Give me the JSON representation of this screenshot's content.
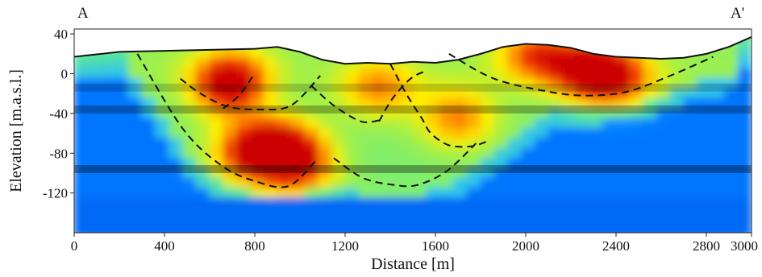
{
  "section_labels": {
    "start": "A",
    "end": "A'"
  },
  "chart_data": {
    "type": "heatmap",
    "title": "",
    "xlabel": "Distance [m]",
    "ylabel": "Elevation [m.a.s.l.]",
    "xlim": [
      0,
      3000
    ],
    "ylim": [
      -160,
      45
    ],
    "x_ticks": [
      0,
      400,
      800,
      1200,
      1600,
      2000,
      2400,
      2800,
      3000
    ],
    "y_ticks": [
      40,
      0,
      -40,
      -80,
      -120
    ],
    "colorscale": [
      "#0033cc",
      "#0077ff",
      "#22bbff",
      "#66ee88",
      "#aaf040",
      "#ffee00",
      "#ff9900",
      "#ee3300",
      "#cc0000"
    ],
    "topography": {
      "x": [
        0,
        200,
        400,
        600,
        800,
        900,
        1000,
        1100,
        1200,
        1300,
        1400,
        1500,
        1600,
        1700,
        1800,
        1900,
        2000,
        2100,
        2200,
        2300,
        2400,
        2500,
        2600,
        2700,
        2800,
        2900,
        3000
      ],
      "y": [
        17,
        22,
        23,
        24,
        25,
        27,
        22,
        14,
        10,
        11,
        10,
        12,
        11,
        14,
        20,
        27,
        30,
        29,
        26,
        20,
        17,
        16,
        15,
        16,
        20,
        27,
        37
      ]
    },
    "anomalies": [
      {
        "x": 1350,
        "y": -15,
        "intensity": 0.55
      },
      {
        "x": 680,
        "y": -15,
        "intensity": 0.6
      },
      {
        "x": 700,
        "y": -5,
        "intensity": 0.55
      },
      {
        "x": 920,
        "y": -75,
        "intensity": 0.9
      },
      {
        "x": 780,
        "y": -80,
        "intensity": 0.78
      },
      {
        "x": 1000,
        "y": -95,
        "intensity": 0.62
      },
      {
        "x": 1700,
        "y": -45,
        "intensity": 0.62
      },
      {
        "x": 2050,
        "y": 18,
        "intensity": 0.7
      },
      {
        "x": 2290,
        "y": 2,
        "intensity": 0.95
      },
      {
        "x": 2420,
        "y": -5,
        "intensity": 0.55
      }
    ],
    "dashed_boundaries": [
      {
        "x": [
          280,
          480,
          650,
          800,
          950,
          1080
        ],
        "y": [
          20,
          -55,
          -92,
          -108,
          -113,
          -85
        ]
      },
      {
        "x": [
          470,
          560,
          680,
          820,
          960,
          1090
        ],
        "y": [
          -5,
          -20,
          -33,
          -36,
          -32,
          -2
        ]
      },
      {
        "x": [
          660,
          730,
          790
        ],
        "y": [
          -35,
          -22,
          -3
        ]
      },
      {
        "x": [
          1050,
          1150,
          1270,
          1350
        ],
        "y": [
          -12,
          -32,
          -48,
          -47
        ]
      },
      {
        "x": [
          1350,
          1410,
          1490,
          1560
        ],
        "y": [
          -48,
          -25,
          -5,
          3
        ]
      },
      {
        "x": [
          1400,
          1470,
          1540,
          1580,
          1660,
          1760,
          1830
        ],
        "y": [
          10,
          -20,
          -45,
          -60,
          -72,
          -73,
          -68
        ]
      },
      {
        "x": [
          1150,
          1280,
          1420,
          1520,
          1650,
          1780
        ],
        "y": [
          -85,
          -105,
          -112,
          -112,
          -98,
          -70
        ]
      },
      {
        "x": [
          1660,
          1860,
          2100,
          2270,
          2450,
          2640,
          2830
        ],
        "y": [
          20,
          -5,
          -18,
          -22,
          -18,
          -2,
          17
        ]
      }
    ],
    "noise_bands": [
      {
        "y_top": -10,
        "y_bottom": -18,
        "opacity": 0.18
      },
      {
        "y_top": -32,
        "y_bottom": -40,
        "opacity": 0.28
      },
      {
        "y_top": -92,
        "y_bottom": -100,
        "opacity": 0.35
      }
    ],
    "grid": false,
    "legend": "none"
  }
}
